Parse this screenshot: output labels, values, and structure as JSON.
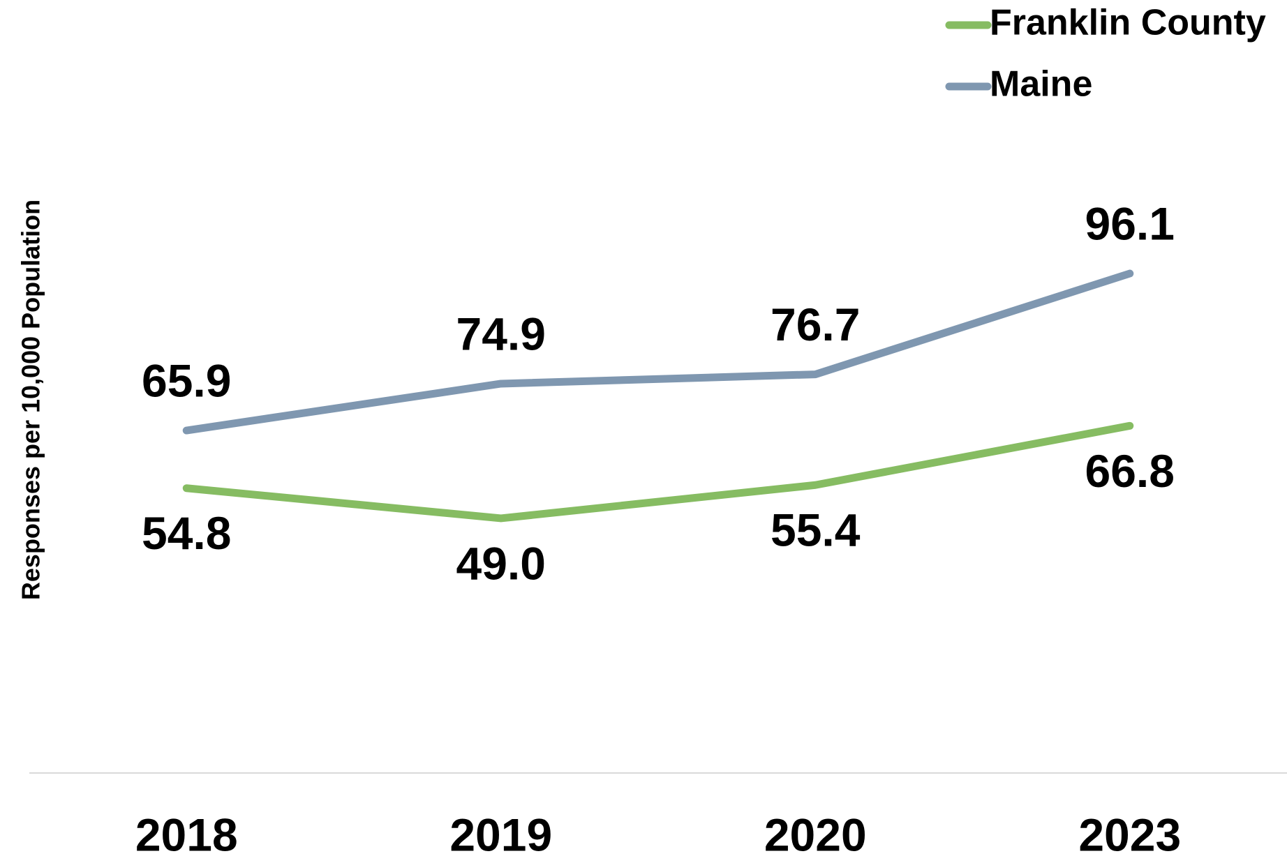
{
  "chart_data": {
    "type": "line",
    "y_label": "Responses per 10,000 Population",
    "categories": [
      "2018",
      "2019",
      "2020",
      "2023"
    ],
    "series": [
      {
        "name": "Franklin County",
        "color": "#86bc62",
        "values": [
          54.8,
          49.0,
          55.4,
          66.8
        ],
        "value_labels": [
          "54.8",
          "49.0",
          "55.4",
          "66.8"
        ],
        "label_position": "below"
      },
      {
        "name": "Maine",
        "color": "#7f97b0",
        "values": [
          65.9,
          74.9,
          76.7,
          96.1
        ],
        "value_labels": [
          "65.9",
          "74.9",
          "76.7",
          "96.1"
        ],
        "label_position": "above"
      }
    ],
    "ylim": [
      0,
      140
    ],
    "legend": "top-right"
  }
}
